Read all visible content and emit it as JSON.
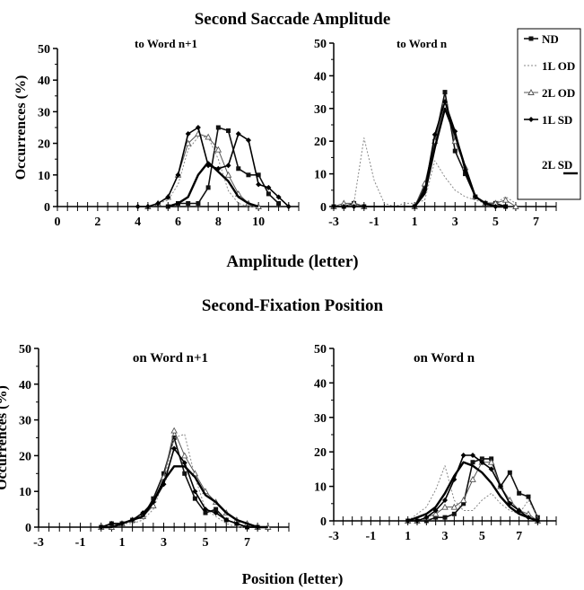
{
  "section1_title": "Second Saccade Amplitude",
  "section2_title": "Second-Fixation Position",
  "section1_xlabel": "Amplitude (letter)",
  "section2_xlabel": "Position (letter)",
  "legend": {
    "items": [
      {
        "label": "ND",
        "style": "square"
      },
      {
        "label": "1L OD",
        "style": "dotted"
      },
      {
        "label": "2L OD",
        "style": "triangle"
      },
      {
        "label": "1L SD",
        "style": "diamond"
      },
      {
        "label": "2L SD",
        "style": "thick"
      }
    ]
  },
  "chart_data": [
    {
      "type": "line",
      "title": "to Word n+1",
      "ylabel": "Occurrences (%)",
      "xlim": [
        0,
        12
      ],
      "ylim": [
        0,
        50
      ],
      "xticks": [
        0,
        2,
        4,
        6,
        8,
        10
      ],
      "yticks": [
        0,
        10,
        20,
        30,
        40,
        50
      ],
      "series": [
        {
          "name": "ND",
          "x": [
            5.5,
            6,
            6.5,
            7,
            7.5,
            8,
            8.5,
            9,
            9.5,
            10,
            10.5,
            11
          ],
          "y": [
            0,
            1,
            1,
            1,
            6,
            25,
            24,
            12,
            10,
            10,
            4,
            1
          ]
        },
        {
          "name": "1L OD",
          "x": [
            4,
            4.5,
            5,
            5.5,
            6,
            6.5,
            7,
            7.5,
            8,
            8.5,
            9,
            9.5,
            10
          ],
          "y": [
            0,
            0,
            1,
            2,
            7,
            18,
            22,
            22,
            15,
            5,
            1,
            0,
            0
          ]
        },
        {
          "name": "2L OD",
          "x": [
            4.5,
            5,
            5.5,
            6,
            6.5,
            7,
            7.5,
            8,
            8.5,
            9,
            9.5,
            10
          ],
          "y": [
            0,
            1,
            3,
            10,
            20,
            23,
            22,
            18,
            10,
            4,
            1,
            0
          ]
        },
        {
          "name": "1L SD",
          "x": [
            4,
            4.5,
            5,
            5.5,
            6,
            6.5,
            7,
            7.5,
            8,
            8.5,
            9,
            9.5,
            10,
            10.5,
            11,
            11.5
          ],
          "y": [
            0,
            0,
            1,
            3,
            10,
            23,
            25,
            13,
            12,
            13,
            23,
            21,
            7,
            6,
            3,
            0
          ]
        },
        {
          "name": "2L SD",
          "x": [
            5.5,
            6,
            6.5,
            7,
            7.5,
            8,
            8.5,
            9,
            9.5,
            10
          ],
          "y": [
            0,
            1,
            3,
            10,
            14,
            11,
            8,
            3,
            1,
            0
          ]
        }
      ]
    },
    {
      "type": "line",
      "title": "to Word n",
      "ylabel": "",
      "xlim": [
        -3,
        8
      ],
      "ylim": [
        0,
        50
      ],
      "xticks": [
        -3,
        -1,
        1,
        3,
        5,
        7
      ],
      "yticks": [
        0,
        10,
        20,
        30,
        40,
        50
      ],
      "series": [
        {
          "name": "ND",
          "x": [
            -3,
            -2.5,
            -2,
            -1.5,
            1,
            1.5,
            2,
            2.5,
            3,
            3.5,
            4,
            4.5,
            5,
            5.5
          ],
          "y": [
            0,
            0,
            1,
            0,
            0,
            6,
            20,
            35,
            17,
            10,
            3,
            1,
            1,
            0
          ]
        },
        {
          "name": "1L OD",
          "x": [
            -3,
            -2.5,
            -2,
            -1.5,
            -1,
            -0.5,
            0,
            0.5,
            1,
            1.5,
            2,
            2.5,
            3,
            3.5,
            4,
            4.5,
            5,
            5.5,
            6
          ],
          "y": [
            0,
            0,
            1,
            21,
            8,
            1,
            0,
            1,
            1,
            2,
            14,
            9,
            5,
            3,
            2,
            1,
            1,
            3,
            1
          ]
        },
        {
          "name": "2L OD",
          "x": [
            -3,
            -2.5,
            -2,
            -1.5,
            1,
            1.5,
            2,
            2.5,
            3,
            3.5,
            4,
            4.5,
            5,
            5.5,
            6
          ],
          "y": [
            0,
            1,
            1,
            0,
            0,
            7,
            20,
            32,
            20,
            12,
            3,
            1,
            1,
            2,
            0
          ]
        },
        {
          "name": "1L SD",
          "x": [
            -3,
            -2.5,
            -2,
            -1.5,
            1,
            1.5,
            2,
            2.5,
            3,
            3.5,
            4,
            4.5,
            5,
            5.5
          ],
          "y": [
            0,
            0,
            0,
            0,
            0,
            5,
            22,
            32,
            23,
            11,
            3,
            1,
            0,
            0
          ]
        },
        {
          "name": "2L SD",
          "x": [
            1,
            1.5,
            2,
            2.5,
            3,
            3.5,
            4,
            4.5,
            5,
            5.5
          ],
          "y": [
            0,
            4,
            18,
            30,
            22,
            12,
            3,
            1,
            0,
            0
          ]
        }
      ]
    },
    {
      "type": "line",
      "title": "on Word n+1",
      "ylabel": "Occurrences (%)",
      "xlim": [
        -3,
        9
      ],
      "ylim": [
        0,
        50
      ],
      "xticks": [
        -3,
        -1,
        1,
        3,
        5,
        7
      ],
      "yticks": [
        0,
        10,
        20,
        30,
        40,
        50
      ],
      "series": [
        {
          "name": "ND",
          "x": [
            0,
            0.5,
            1,
            1.5,
            2,
            2.5,
            3,
            3.5,
            4,
            4.5,
            5,
            5.5,
            6,
            6.5,
            7,
            7.5
          ],
          "y": [
            0,
            1,
            1,
            2,
            3,
            8,
            15,
            25,
            15,
            8,
            4,
            5,
            2,
            1,
            0,
            0
          ]
        },
        {
          "name": "1L OD",
          "x": [
            0,
            0.5,
            1,
            1.5,
            2,
            2.5,
            3,
            3.5,
            4,
            4.5,
            5,
            5.5,
            6,
            6.5,
            7,
            7.5
          ],
          "y": [
            0,
            0,
            1,
            1,
            2,
            5,
            13,
            25,
            26,
            14,
            5,
            3,
            1,
            0,
            0,
            0
          ]
        },
        {
          "name": "2L OD",
          "x": [
            0,
            0.5,
            1,
            1.5,
            2,
            2.5,
            3,
            3.5,
            4,
            4.5,
            5,
            5.5,
            6,
            6.5,
            7,
            7.5,
            8
          ],
          "y": [
            0,
            0,
            1,
            2,
            3,
            6,
            14,
            27,
            20,
            15,
            10,
            7,
            4,
            2,
            1,
            0,
            0
          ]
        },
        {
          "name": "1L SD",
          "x": [
            0,
            0.5,
            1,
            1.5,
            2,
            2.5,
            3,
            3.5,
            4,
            4.5,
            5,
            5.5,
            6,
            6.5,
            7,
            7.5
          ],
          "y": [
            0,
            1,
            1,
            2,
            4,
            7,
            12,
            22,
            18,
            10,
            5,
            4,
            2,
            1,
            0,
            0
          ]
        },
        {
          "name": "2L SD",
          "x": [
            0,
            0.5,
            1,
            1.5,
            2,
            2.5,
            3,
            3.5,
            4,
            4.5,
            5,
            5.5,
            6,
            6.5,
            7,
            7.5,
            8
          ],
          "y": [
            0,
            0,
            1,
            2,
            3,
            7,
            13,
            17,
            17,
            14,
            9,
            7,
            4,
            2,
            1,
            0,
            0
          ]
        }
      ]
    },
    {
      "type": "line",
      "title": "on Word n",
      "ylabel": "",
      "xlim": [
        -3,
        9
      ],
      "ylim": [
        0,
        50
      ],
      "xticks": [
        -3,
        -1,
        1,
        3,
        5,
        7
      ],
      "yticks": [
        0,
        10,
        20,
        30,
        40,
        50
      ],
      "series": [
        {
          "name": "ND",
          "x": [
            1,
            1.5,
            2,
            2.5,
            3,
            3.5,
            4,
            4.5,
            5,
            5.5,
            6,
            6.5,
            7,
            7.5,
            8
          ],
          "y": [
            0,
            0,
            0,
            1,
            1,
            2,
            5,
            17,
            18,
            18,
            10,
            14,
            8,
            7,
            1
          ]
        },
        {
          "name": "1L OD",
          "x": [
            1,
            1.5,
            2,
            2.5,
            3,
            3.5,
            4,
            4.5,
            5,
            5.5,
            6,
            6.5,
            7,
            7.5,
            8
          ],
          "y": [
            0,
            2,
            4,
            9,
            16,
            6,
            3,
            3,
            6,
            8,
            5,
            3,
            2,
            6,
            1
          ]
        },
        {
          "name": "2L OD",
          "x": [
            1,
            1.5,
            2,
            2.5,
            3,
            3.5,
            4,
            4.5,
            5,
            5.5,
            6,
            6.5,
            7,
            7.5,
            8
          ],
          "y": [
            0,
            0,
            1,
            2,
            4,
            4,
            6,
            12,
            17,
            17,
            10,
            6,
            3,
            2,
            0
          ]
        },
        {
          "name": "1L SD",
          "x": [
            1,
            1.5,
            2,
            2.5,
            3,
            3.5,
            4,
            4.5,
            5,
            5.5,
            6,
            6.5,
            7,
            7.5,
            8
          ],
          "y": [
            0,
            0,
            1,
            3,
            6,
            12,
            19,
            19,
            17,
            15,
            10,
            5,
            3,
            1,
            0
          ]
        },
        {
          "name": "2L SD",
          "x": [
            1,
            1.5,
            2,
            2.5,
            3,
            3.5,
            4,
            4.5,
            5,
            5.5,
            6,
            6.5,
            7,
            7.5,
            8
          ],
          "y": [
            0,
            1,
            2,
            4,
            8,
            13,
            17,
            16,
            14,
            11,
            7,
            4,
            2,
            1,
            0
          ]
        }
      ]
    }
  ]
}
